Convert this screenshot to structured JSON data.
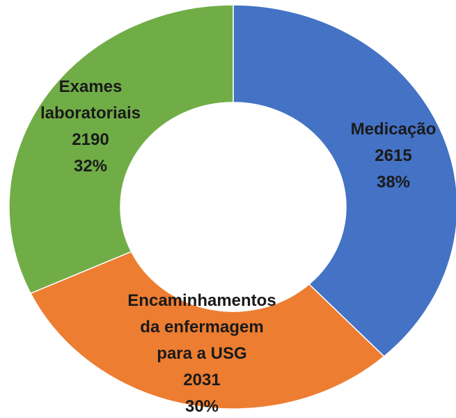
{
  "chart_data": {
    "type": "donut",
    "categories": [
      "Medicação",
      "Encaminhamentos\nda enfermagem\npara a USG",
      "Exames\nlaboratoriais"
    ],
    "values": [
      2615,
      2031,
      2190
    ],
    "percent_labels": [
      "38%",
      "30%",
      "32%"
    ],
    "colors": [
      "#4472c4",
      "#ed7d31",
      "#70ad47"
    ]
  }
}
